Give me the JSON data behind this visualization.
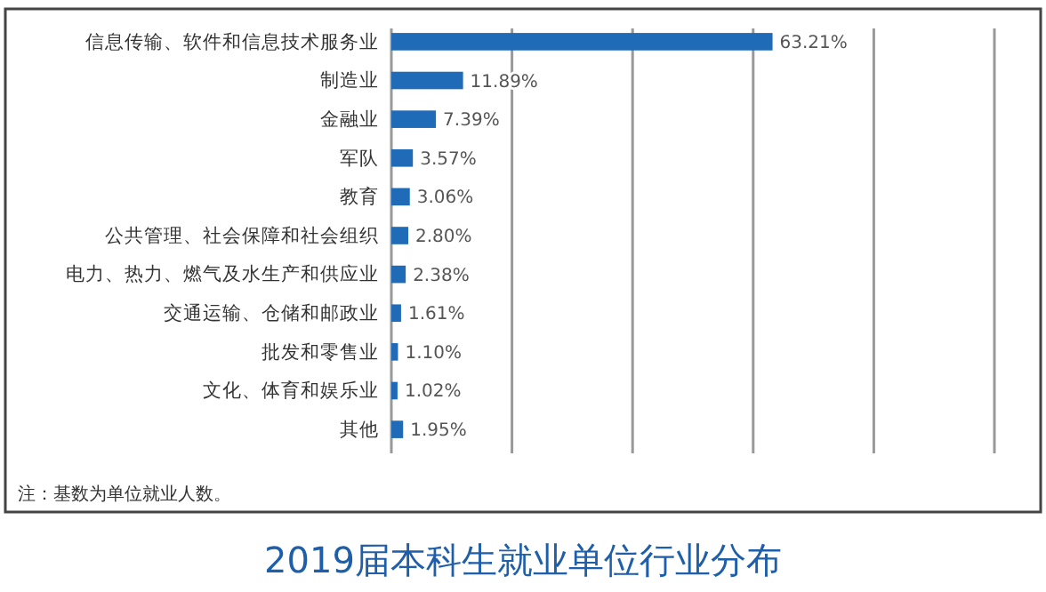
{
  "chart_data": {
    "type": "bar",
    "orientation": "horizontal",
    "title": "2019届本科生就业单位行业分布",
    "categories": [
      "信息传输、软件和信息技术服务业",
      "制造业",
      "金融业",
      "军队",
      "教育",
      "公共管理、社会保障和社会组织",
      "电力、热力、燃气及水生产和供应业",
      "交通运输、仓储和邮政业",
      "批发和零售业",
      "文化、体育和娱乐业",
      "其他"
    ],
    "values": [
      63.21,
      11.89,
      7.39,
      3.57,
      3.06,
      2.8,
      2.38,
      1.61,
      1.1,
      1.02,
      1.95
    ],
    "value_labels": [
      "63.21%",
      "11.89%",
      "7.39%",
      "3.57%",
      "3.06%",
      "2.80%",
      "2.38%",
      "1.61%",
      "1.10%",
      "1.02%",
      "1.95%"
    ],
    "color": "#1f6bb8",
    "xlim": [
      0,
      100
    ],
    "xticks": [
      {
        "value": 0,
        "label": null
      },
      {
        "value": 20,
        "label": null
      },
      {
        "value": 40,
        "label": null
      },
      {
        "value": 60,
        "label": null
      },
      {
        "value": 80,
        "label": null
      },
      {
        "value": 100,
        "label": null
      }
    ],
    "tick_labels": "y",
    "grid": "x",
    "annotations": [
      "注：基数为单位就业人数。"
    ]
  }
}
